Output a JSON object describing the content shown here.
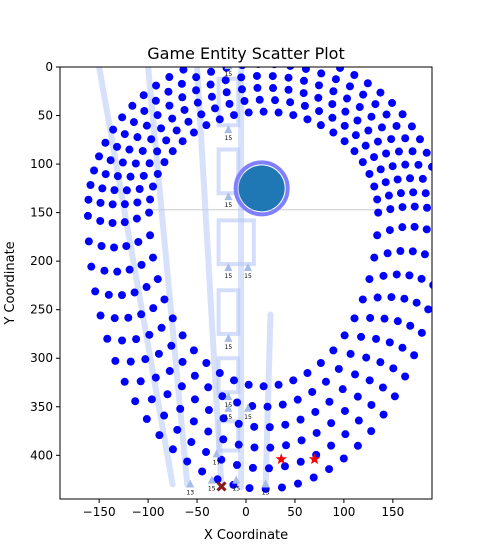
{
  "chart_data": {
    "type": "scatter",
    "title": "Game Entity Scatter Plot",
    "xlabel": "X Coordinate",
    "ylabel": "Y Coordinate",
    "xlim": [
      -190,
      190
    ],
    "ylim": [
      0,
      445
    ],
    "y_inverted": true,
    "x_ticks": [
      -150,
      -100,
      -50,
      0,
      50,
      100,
      150
    ],
    "x_tick_labels": [
      "−150",
      "−100",
      "−50",
      "0",
      "50",
      "100",
      "150"
    ],
    "y_ticks": [
      0,
      50,
      100,
      150,
      200,
      250,
      300,
      350,
      400
    ],
    "y_tick_labels": [
      "0",
      "50",
      "100",
      "150",
      "200",
      "250",
      "300",
      "350",
      "400"
    ],
    "grid": false,
    "colors": {
      "entity": "#0000ff",
      "star": "#ff0000",
      "cross": "#8b1a1a",
      "player": "#1f77b4",
      "player_ring": "#8080ff",
      "path": "#b8c8f8",
      "arrow": "#a8bce8"
    },
    "rings": {
      "center": [
        18,
        150
      ],
      "count": 6,
      "base_rx": 117,
      "base_ry": 104,
      "rx_step": 12.5,
      "ry_step": 12.3,
      "lower_stretch": 1.72,
      "points_per_ring": 48
    },
    "player": {
      "x": 16,
      "y": 125,
      "r": 24
    },
    "stars": [
      {
        "x": 36,
        "y": 404
      },
      {
        "x": 70,
        "y": 404
      }
    ],
    "cross": {
      "x": -25,
      "y": 432
    },
    "arrow_markers": [
      {
        "x": -18,
        "y": 63,
        "label": "15"
      },
      {
        "x": -18,
        "y": 132,
        "label": "15"
      },
      {
        "x": -18,
        "y": 205,
        "label": "15"
      },
      {
        "x": 2,
        "y": 205,
        "label": "15"
      },
      {
        "x": -18,
        "y": 278,
        "label": "15"
      },
      {
        "x": -18,
        "y": 338,
        "label": "15"
      },
      {
        "x": -18,
        "y": 350,
        "label": "15"
      },
      {
        "x": 2,
        "y": 350,
        "label": "15"
      },
      {
        "x": -30,
        "y": 397,
        "label": "17"
      },
      {
        "x": -57,
        "y": 428,
        "label": "13"
      },
      {
        "x": -35,
        "y": 424,
        "label": "15"
      },
      {
        "x": -10,
        "y": 424,
        "label": "15"
      },
      {
        "x": 20,
        "y": 428,
        "label": "13"
      },
      {
        "x": -18,
        "y": -3,
        "label": "15"
      }
    ],
    "paths": [
      {
        "points": [
          [
            -50,
            0
          ],
          [
            -25,
            433
          ]
        ]
      },
      {
        "points": [
          [
            -100,
            0
          ],
          [
            -60,
            430
          ]
        ]
      },
      {
        "points": [
          [
            -5,
            0
          ],
          [
            -5,
            433
          ]
        ]
      },
      {
        "points": [
          [
            25,
            255
          ],
          [
            20,
            433
          ]
        ]
      },
      {
        "points": [
          [
            -150,
            0
          ],
          [
            -75,
            430
          ]
        ]
      }
    ],
    "boxes": [
      {
        "x0": -28,
        "y0": 12,
        "x1": -8,
        "y1": 60
      },
      {
        "x0": -28,
        "y0": 85,
        "x1": -8,
        "y1": 130
      },
      {
        "x0": -28,
        "y0": 158,
        "x1": 8,
        "y1": 203
      },
      {
        "x0": -28,
        "y0": 230,
        "x1": -8,
        "y1": 275
      },
      {
        "x0": -28,
        "y0": 300,
        "x1": -8,
        "y1": 335
      },
      {
        "x0": -28,
        "y0": 365,
        "x1": -8,
        "y1": 395
      }
    ],
    "crosshair": {
      "y": 147
    }
  }
}
